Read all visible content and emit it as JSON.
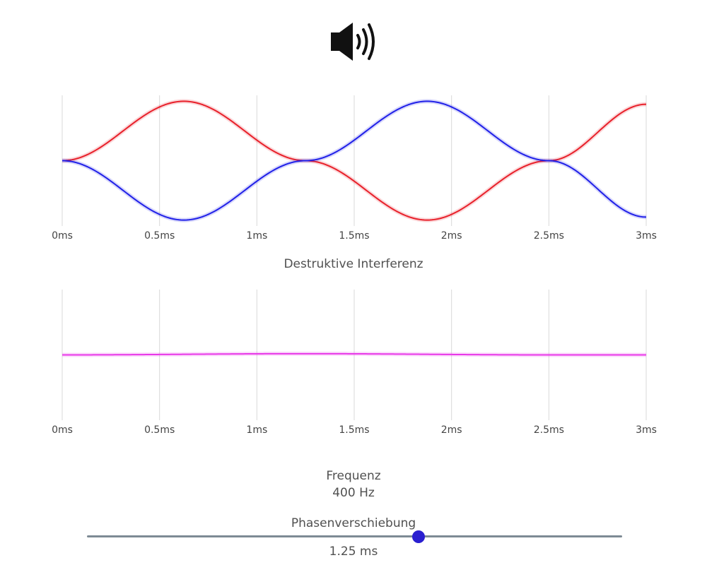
{
  "audio": {
    "icon": "speaker-volume-icon"
  },
  "colors": {
    "wave_a": "#e8202a",
    "wave_b": "#2020e8",
    "wave_sum": "#e838e8",
    "grid": "#d9d9d9",
    "slider_track": "#7d8a94",
    "slider_thumb": "#2a1fd0"
  },
  "interference": {
    "title": "Destruktive Interferenz"
  },
  "frequency": {
    "label": "Frequenz",
    "value": "400 Hz"
  },
  "phase": {
    "label": "Phasenverschiebung",
    "value": "1.25 ms",
    "slider_fraction": 0.62
  },
  "chart_data": [
    {
      "type": "line",
      "x_ticks": [
        "0ms",
        "0.5ms",
        "1ms",
        "1.5ms",
        "2ms",
        "2.5ms",
        "3ms"
      ],
      "xlim": [
        0,
        3
      ],
      "ylim": [
        -1.1,
        1.1
      ],
      "grid": "vertical",
      "frequency_hz": 400,
      "series": [
        {
          "color": "#e8202a",
          "x": [
            0,
            0.625,
            1.25,
            1.875,
            2.5,
            3.0
          ],
          "y": [
            0,
            1,
            0,
            -1,
            0,
            0.95
          ]
        },
        {
          "color": "#2020e8",
          "x": [
            0,
            0.625,
            1.25,
            1.875,
            2.5,
            3.0
          ],
          "y": [
            0,
            -1,
            0,
            1,
            0,
            -0.95
          ]
        }
      ]
    },
    {
      "type": "line",
      "x_ticks": [
        "0ms",
        "0.5ms",
        "1ms",
        "1.5ms",
        "2ms",
        "2.5ms",
        "3ms"
      ],
      "xlim": [
        0,
        3
      ],
      "ylim": [
        -1.1,
        1.1
      ],
      "grid": "vertical",
      "series": [
        {
          "color": "#e838e8",
          "x": [
            0,
            1.25,
            2.5,
            3.0
          ],
          "y": [
            0,
            0.02,
            0,
            0
          ]
        }
      ]
    }
  ]
}
